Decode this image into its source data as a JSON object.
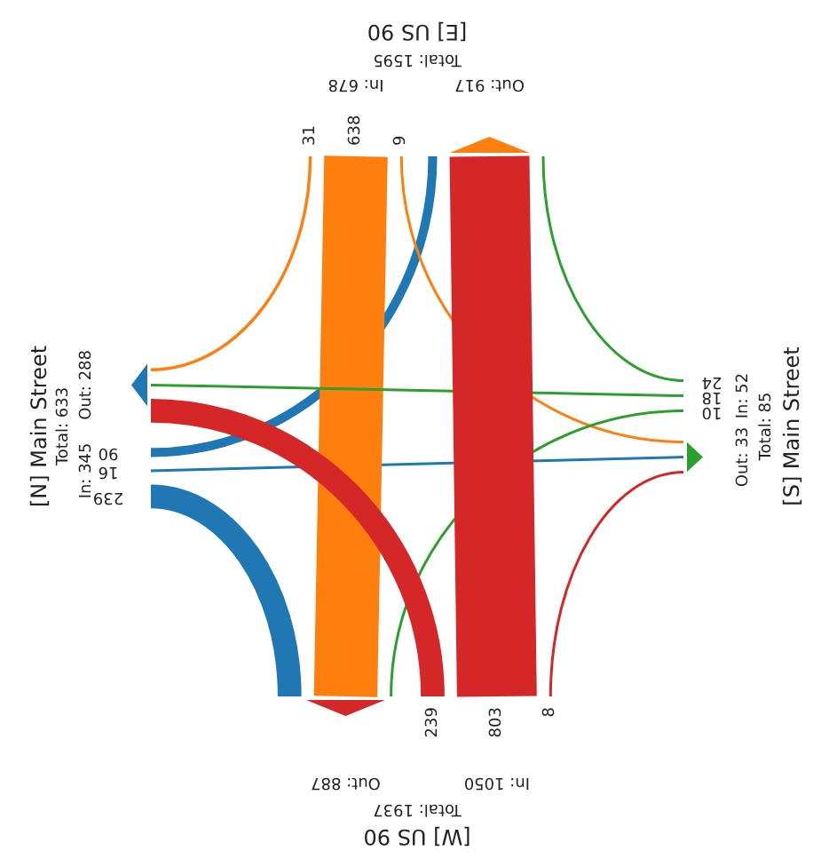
{
  "chart_data": {
    "type": "other",
    "categories": [
      "[N] Main Street",
      "[E] US 90",
      "[S] Main Street",
      "[W] US 90"
    ],
    "colors": [
      "#1f77b4",
      "#ff7f0e",
      "#2ca02c",
      "#d62728"
    ],
    "series": [
      {
        "values": [
          90,
          9,
          10,
          239
        ]
      },
      {
        "values": [
          16,
          638,
          18,
          803
        ]
      },
      {
        "values": [
          239,
          31,
          24,
          8
        ]
      }
    ],
    "annotations": [
      "Total: 633",
      "In: 345",
      "Out: 288",
      "Total: 1595",
      "In: 678",
      "Out: 917",
      "Total: 85",
      "In: 52",
      "Out: 33",
      "Total: 1937",
      "In: 1050",
      "Out: 887"
    ],
    "data_labels": true
  }
}
